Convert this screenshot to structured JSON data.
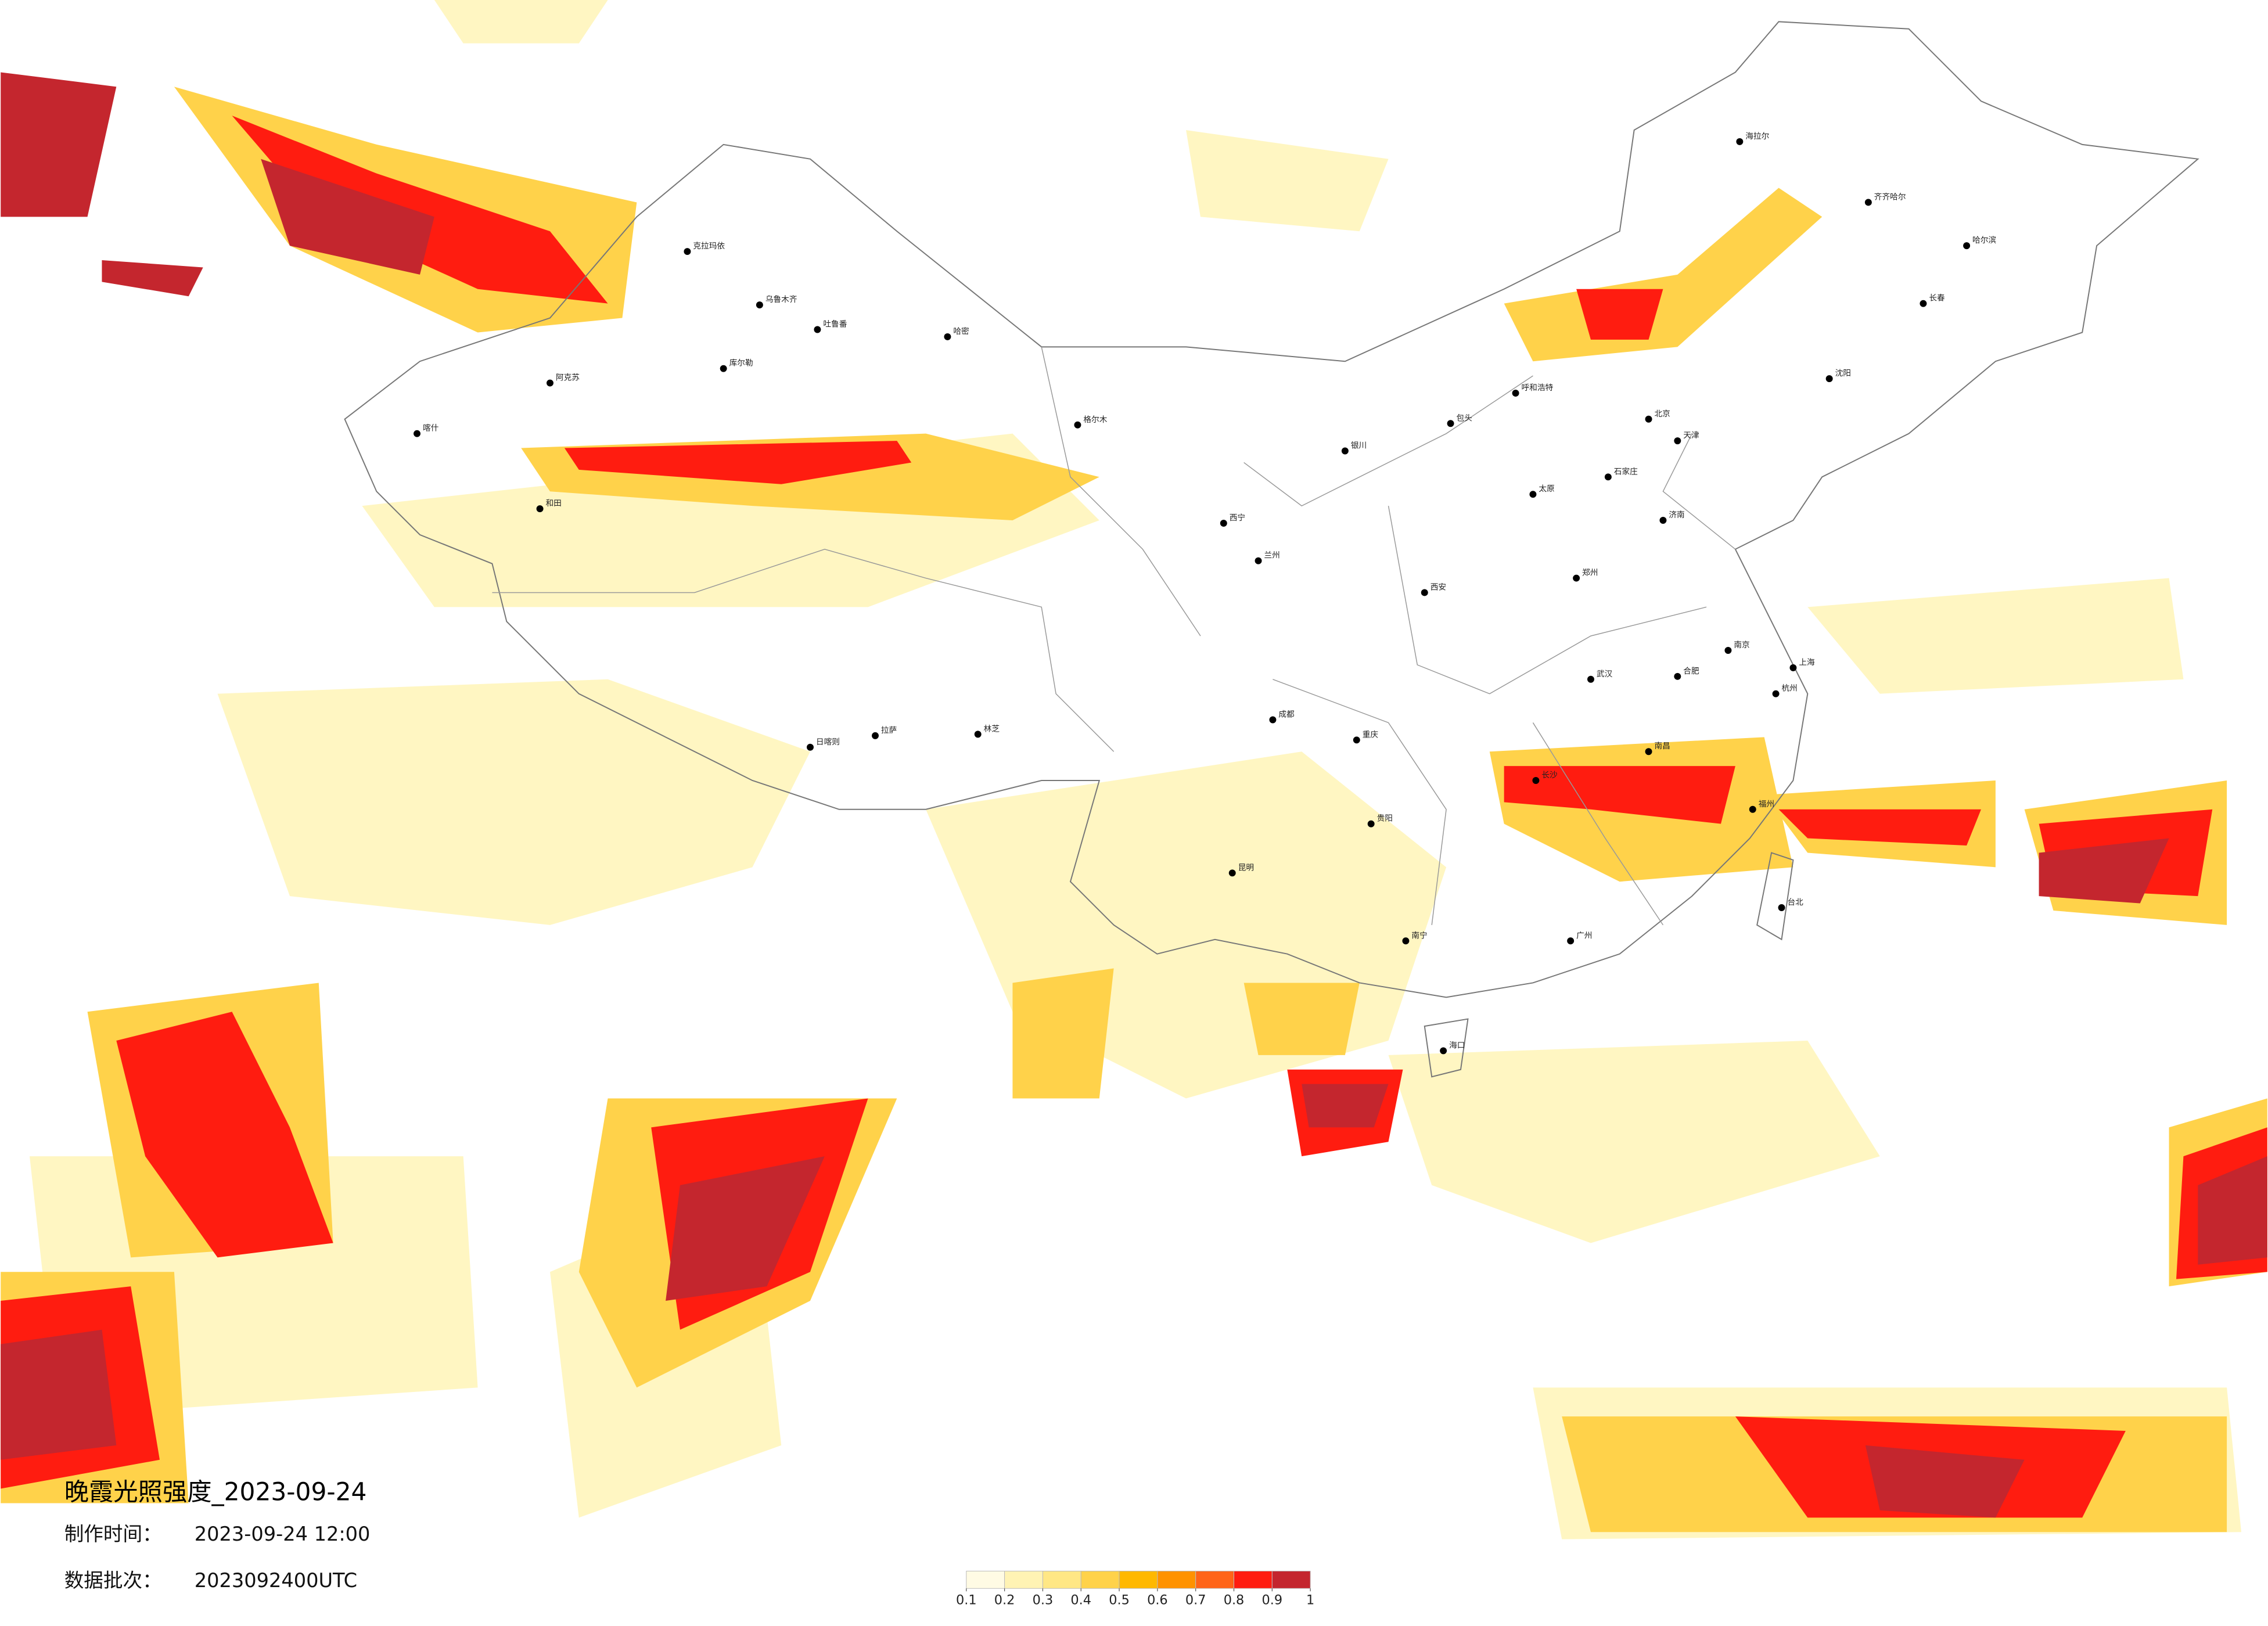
{
  "title": "晚霞光照强度_2023-09-24",
  "made_time": {
    "label": "制作时间：",
    "value": "2023-09-24 12:00"
  },
  "batch": {
    "label": "数据批次：",
    "value": "2023092400UTC"
  },
  "legend": {
    "ticks": [
      0.1,
      0.2,
      0.3,
      0.4,
      0.5,
      0.6,
      0.7,
      0.8,
      0.9,
      1
    ],
    "colors": [
      "#fffbe4",
      "#fff3b4",
      "#ffe785",
      "#ffd24a",
      "#ffb800",
      "#ff9200",
      "#ff6418",
      "#ff1c10",
      "#c4262e"
    ]
  },
  "cities": [
    "克拉玛依",
    "乌鲁木齐",
    "吐鲁番",
    "哈密",
    "阿克苏",
    "喀什",
    "和田",
    "库尔勒",
    "格尔木",
    "日喀则",
    "拉萨",
    "林芝",
    "西宁",
    "兰州",
    "银川",
    "呼和浩特",
    "包头",
    "北京",
    "天津",
    "石家庄",
    "太原",
    "济南",
    "郑州",
    "西安",
    "成都",
    "重庆",
    "贵阳",
    "昆明",
    "南宁",
    "广州",
    "长沙",
    "武汉",
    "南昌",
    "福州",
    "杭州",
    "上海",
    "南京",
    "合肥",
    "沈阳",
    "长春",
    "哈尔滨",
    "海拉尔",
    "齐齐哈尔",
    "台北",
    "海口"
  ]
}
